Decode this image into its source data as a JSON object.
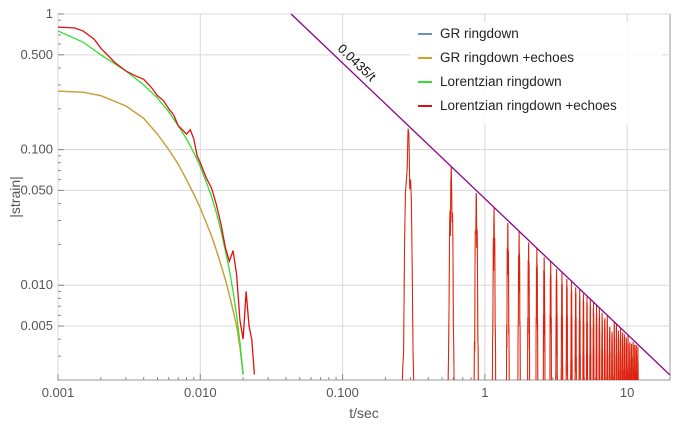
{
  "chart_data": {
    "type": "line",
    "title": "",
    "xlabel": "t/sec",
    "ylabel": "|strain|",
    "xscale": "log",
    "yscale": "log",
    "xlim": [
      0.001,
      20
    ],
    "ylim": [
      0.002,
      1
    ],
    "grid": true,
    "legend_position": "top-right",
    "x_ticks": [
      {
        "value": 0.001,
        "label": "0.001"
      },
      {
        "value": 0.01,
        "label": "0.010"
      },
      {
        "value": 0.1,
        "label": "0.100"
      },
      {
        "value": 1,
        "label": "1"
      },
      {
        "value": 10,
        "label": "10"
      }
    ],
    "y_ticks": [
      {
        "value": 0.005,
        "label": "0.005"
      },
      {
        "value": 0.01,
        "label": "0.010"
      },
      {
        "value": 0.05,
        "label": "0.050"
      },
      {
        "value": 0.1,
        "label": "0.100"
      },
      {
        "value": 0.5,
        "label": "0.500"
      },
      {
        "value": 1,
        "label": "1"
      }
    ],
    "annotation": {
      "text": "0.0435/t",
      "coefficient": 0.0435,
      "color": "#8B008B"
    },
    "series": [
      {
        "name": "GR ringdown",
        "color": "#6B8EC6",
        "x": [
          0.001,
          0.0015,
          0.002,
          0.003,
          0.004,
          0.005,
          0.006,
          0.007,
          0.008,
          0.009,
          0.01,
          0.011,
          0.012,
          0.013,
          0.014,
          0.015,
          0.016,
          0.017,
          0.018,
          0.019,
          0.02
        ],
        "y": [
          0.27,
          0.265,
          0.25,
          0.21,
          0.17,
          0.13,
          0.1,
          0.078,
          0.06,
          0.047,
          0.037,
          0.029,
          0.023,
          0.018,
          0.014,
          0.011,
          0.0085,
          0.0065,
          0.005,
          0.0035,
          0.0022
        ]
      },
      {
        "name": "GR ringdown +echoes",
        "color": "#D4A02A",
        "x": [
          0.001,
          0.0015,
          0.002,
          0.003,
          0.004,
          0.005,
          0.006,
          0.007,
          0.008,
          0.009,
          0.01,
          0.011,
          0.012,
          0.013,
          0.014,
          0.015,
          0.016,
          0.017,
          0.018,
          0.019,
          0.02
        ],
        "y": [
          0.27,
          0.265,
          0.25,
          0.21,
          0.17,
          0.13,
          0.1,
          0.078,
          0.06,
          0.047,
          0.037,
          0.029,
          0.023,
          0.018,
          0.014,
          0.011,
          0.0085,
          0.0065,
          0.005,
          0.0035,
          0.0022
        ],
        "echoes": {
          "period": 0.29,
          "count": 40,
          "t_end": 12,
          "peak_coefficient": 0.0435
        }
      },
      {
        "name": "Lorentzian ringdown",
        "color": "#33DD33",
        "x": [
          0.001,
          0.0015,
          0.002,
          0.003,
          0.004,
          0.005,
          0.006,
          0.007,
          0.008,
          0.009,
          0.01,
          0.011,
          0.012,
          0.013,
          0.014,
          0.015,
          0.016,
          0.017,
          0.018,
          0.019,
          0.02
        ],
        "y": [
          0.75,
          0.62,
          0.5,
          0.38,
          0.3,
          0.24,
          0.19,
          0.15,
          0.12,
          0.095,
          0.075,
          0.058,
          0.045,
          0.034,
          0.025,
          0.018,
          0.013,
          0.009,
          0.006,
          0.0038,
          0.0022
        ]
      },
      {
        "name": "Lorentzian ringdown +echoes",
        "color": "#E01010",
        "x": [
          0.001,
          0.0013,
          0.0015,
          0.0018,
          0.002,
          0.0025,
          0.003,
          0.0035,
          0.004,
          0.0045,
          0.005,
          0.0055,
          0.006,
          0.0065,
          0.007,
          0.0075,
          0.008,
          0.0085,
          0.009,
          0.0095,
          0.01,
          0.011,
          0.012,
          0.013,
          0.014,
          0.015,
          0.016,
          0.017,
          0.018,
          0.019,
          0.02,
          0.021,
          0.022,
          0.023,
          0.024
        ],
        "y": [
          0.8,
          0.79,
          0.75,
          0.65,
          0.56,
          0.44,
          0.38,
          0.35,
          0.33,
          0.29,
          0.25,
          0.23,
          0.2,
          0.18,
          0.15,
          0.14,
          0.13,
          0.14,
          0.12,
          0.09,
          0.08,
          0.062,
          0.052,
          0.039,
          0.028,
          0.019,
          0.015,
          0.018,
          0.012,
          0.0055,
          0.004,
          0.009,
          0.005,
          0.004,
          0.0022
        ],
        "echoes": {
          "period": 0.29,
          "count": 40,
          "t_end": 12,
          "peak_coefficient": 0.0435
        }
      }
    ]
  }
}
